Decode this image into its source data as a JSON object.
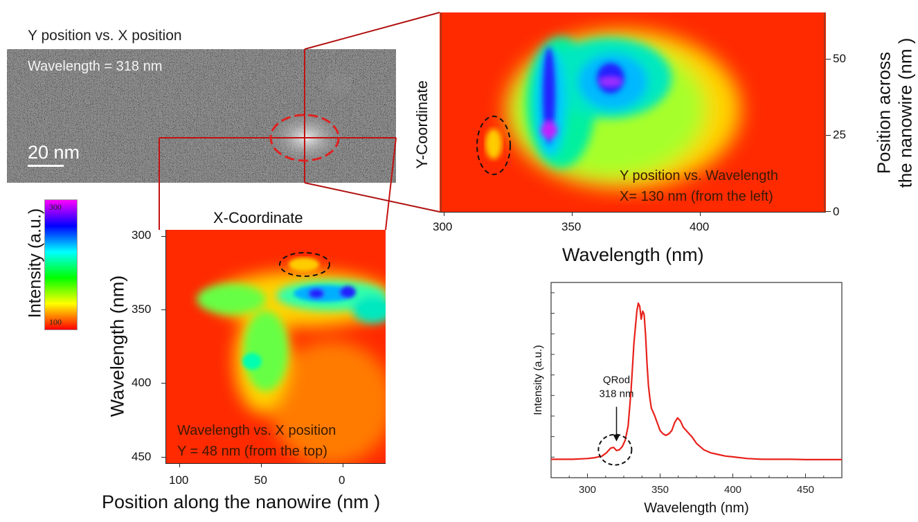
{
  "stem_image": {
    "title": "Y position vs. X position",
    "wavelength_label": "Wavelength = 318 nm",
    "scale_bar_label": "20 nm"
  },
  "colorbar": {
    "label": "Intensity (a.u.)",
    "max_label": "300",
    "min_label": "100",
    "colors": [
      "#ff00ff",
      "#0000ff",
      "#00ffff",
      "#00ff00",
      "#ffff00",
      "#ff0000"
    ]
  },
  "map_y_vs_wavelength": {
    "annotation_line1": "Y position vs. Wavelength",
    "annotation_line2": "X= 130 nm (from the left)",
    "left_axis_label": "Y-Coordinate",
    "right_axis_label_line1": "Position across",
    "right_axis_label_line2": "the nanowire (nm )",
    "xlabel": "Wavelength (nm)",
    "x_ticks": [
      "300",
      "350",
      "400"
    ],
    "right_ticks": [
      "50",
      "25",
      "0"
    ]
  },
  "map_wavelength_vs_x": {
    "top_axis_label": "X-Coordinate",
    "annotation_line1": "Wavelength vs. X position",
    "annotation_line2": "Y = 48 nm (from the top)",
    "ylabel": "Wavelength (nm)",
    "xlabel": "Position along the nanowire (nm )",
    "y_ticks": [
      "300",
      "350",
      "400",
      "450"
    ],
    "x_ticks": [
      "100",
      "50",
      "0"
    ]
  },
  "chart_data": {
    "type": "line",
    "xlabel": "Wavelength (nm)",
    "ylabel": "Intensity (a.u.)",
    "xlim": [
      275,
      475
    ],
    "ylim": [
      0,
      1
    ],
    "x_ticks": [
      "300",
      "350",
      "400",
      "450"
    ],
    "annotation_line1": "QRod",
    "annotation_line2": "318 nm",
    "series": [
      {
        "color": "#e8201a",
        "x": [
          275,
          290,
          300,
          305,
          310,
          313,
          316,
          318,
          320,
          322,
          324,
          326,
          328,
          330,
          332,
          334,
          335,
          336,
          337,
          338,
          339,
          340,
          341,
          342,
          343,
          344,
          346,
          348,
          350,
          352,
          354,
          356,
          358,
          360,
          362,
          364,
          366,
          368,
          370,
          372,
          375,
          380,
          385,
          390,
          395,
          400,
          410,
          420,
          430,
          440,
          450,
          460,
          475
        ],
        "y": [
          0.02,
          0.02,
          0.025,
          0.03,
          0.04,
          0.06,
          0.09,
          0.095,
          0.075,
          0.08,
          0.1,
          0.14,
          0.23,
          0.45,
          0.75,
          0.95,
          1.0,
          0.98,
          0.9,
          0.95,
          0.93,
          0.8,
          0.62,
          0.48,
          0.4,
          0.34,
          0.3,
          0.25,
          0.2,
          0.18,
          0.17,
          0.18,
          0.2,
          0.25,
          0.28,
          0.26,
          0.22,
          0.2,
          0.18,
          0.16,
          0.12,
          0.08,
          0.06,
          0.05,
          0.04,
          0.035,
          0.025,
          0.02,
          0.02,
          0.02,
          0.018,
          0.018,
          0.018
        ]
      }
    ]
  }
}
